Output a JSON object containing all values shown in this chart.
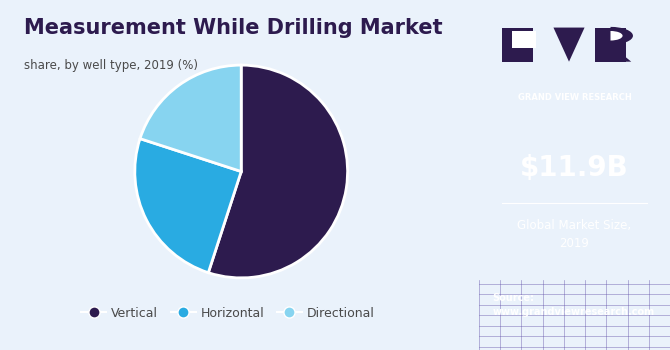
{
  "title": "Measurement While Drilling Market",
  "subtitle": "share, by well type, 2019 (%)",
  "slices": [
    {
      "label": "Vertical",
      "value": 55,
      "color": "#2d1b4e"
    },
    {
      "label": "Horizontal",
      "value": 25,
      "color": "#29abe2"
    },
    {
      "label": "Directional",
      "value": 20,
      "color": "#87d4f0"
    }
  ],
  "bg_color": "#eaf2fb",
  "right_panel_color": "#2d1b4e",
  "market_size": "$11.9B",
  "market_label": "Global Market Size,\n2019",
  "source_text": "Source:\nwww.grandviewresearch.com",
  "start_angle": 90,
  "title_color": "#2d1b4e",
  "subtitle_color": "#4a4a4a",
  "legend_color": "#4a4a4a",
  "grid_bottom_color": "#3a2a6a"
}
